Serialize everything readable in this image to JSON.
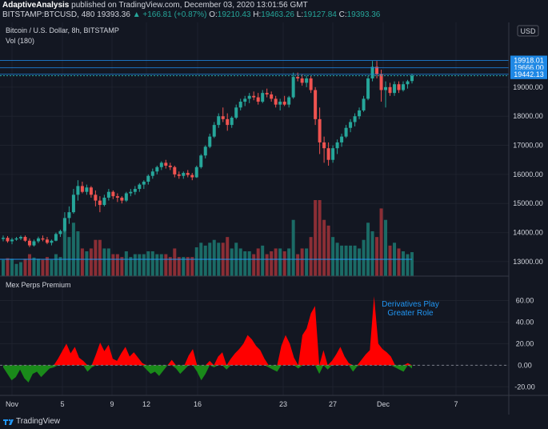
{
  "header": {
    "author": "AdaptiveAnalysis",
    "published_text": "published on TradingView.com, December 03, 2020 13:01:56 GMT",
    "symbol_line": "BITSTAMP:BTCUSD, 480",
    "last_price": "19393.36",
    "change": "▲ +166.81 (+0.87%)",
    "o_label": "O:",
    "o_value": "19210.43",
    "h_label": "H:",
    "h_value": "19463.26",
    "l_label": "L:",
    "l_value": "19127.84",
    "c_label": "C:",
    "c_value": "19393.36"
  },
  "pane_labels": {
    "title": "Bitcoin / U.S. Dollar, 8h, BITSTAMP",
    "volume": "Vol (180)",
    "indicator": "Mex Perps Premium",
    "annotation_line1": "Derivatives Play",
    "annotation_line2": "Greater Role",
    "currency": "USD"
  },
  "price_axis": {
    "ticks": [
      "19000.00",
      "18000.00",
      "17000.00",
      "16000.00",
      "15000.00",
      "14000.00",
      "13000.00"
    ],
    "markers": [
      "19918.01",
      "19666.00",
      "19442.13"
    ]
  },
  "premium_axis": {
    "ticks": [
      "60.00",
      "40.00",
      "20.00",
      "0.00",
      "-20.00"
    ]
  },
  "x_axis": {
    "ticks": [
      "Nov",
      "5",
      "9",
      "12",
      "16",
      "23",
      "27",
      "Dec",
      "7"
    ]
  },
  "footer": {
    "brand": "TradingView"
  },
  "colors": {
    "background": "#131722",
    "up": "#26a69a",
    "down": "#ef5350",
    "up_volume": "#1b6b66",
    "down_volume": "#8b2e35",
    "premium_positive": "#ff0000",
    "premium_negative": "#1a8a1a",
    "annotation": "#2196f3",
    "marker": "#1e88e5"
  },
  "chart_data": [
    {
      "type": "candlestick",
      "title": "Bitcoin / U.S. Dollar, 8h, BITSTAMP",
      "ylim": [
        12750,
        20400
      ],
      "y_ticks": [
        13000,
        14000,
        15000,
        16000,
        17000,
        18000,
        19000
      ],
      "price_markers": [
        19918.01,
        19666.0,
        19442.13
      ],
      "ohlc": [
        [
          13780,
          13900,
          13700,
          13820
        ],
        [
          13820,
          13880,
          13650,
          13700
        ],
        [
          13700,
          13820,
          13600,
          13760
        ],
        [
          13760,
          13850,
          13720,
          13800
        ],
        [
          13800,
          13900,
          13740,
          13850
        ],
        [
          13850,
          13900,
          13680,
          13720
        ],
        [
          13720,
          13800,
          13500,
          13560
        ],
        [
          13560,
          13760,
          13520,
          13700
        ],
        [
          13700,
          13860,
          13640,
          13800
        ],
        [
          13800,
          13900,
          13700,
          13760
        ],
        [
          13760,
          13850,
          13600,
          13650
        ],
        [
          13650,
          13760,
          13560,
          13720
        ],
        [
          13720,
          14000,
          13700,
          13950
        ],
        [
          13950,
          14100,
          13850,
          14050
        ],
        [
          14050,
          14700,
          14000,
          14500
        ],
        [
          14500,
          14900,
          14300,
          14700
        ],
        [
          14700,
          15500,
          14650,
          15300
        ],
        [
          15300,
          15800,
          15100,
          15600
        ],
        [
          15600,
          15750,
          15350,
          15400
        ],
        [
          15400,
          15650,
          15300,
          15550
        ],
        [
          15550,
          15600,
          15200,
          15300
        ],
        [
          15300,
          15450,
          14900,
          15100
        ],
        [
          15100,
          15250,
          14700,
          14950
        ],
        [
          14950,
          15300,
          14900,
          15200
        ],
        [
          15200,
          15500,
          15100,
          15400
        ],
        [
          15400,
          15450,
          15150,
          15250
        ],
        [
          15250,
          15350,
          15050,
          15200
        ],
        [
          15200,
          15250,
          15000,
          15100
        ],
        [
          15100,
          15400,
          15050,
          15350
        ],
        [
          15350,
          15500,
          15250,
          15400
        ],
        [
          15400,
          15600,
          15300,
          15500
        ],
        [
          15500,
          15700,
          15400,
          15650
        ],
        [
          15650,
          15800,
          15500,
          15750
        ],
        [
          15750,
          16000,
          15650,
          15950
        ],
        [
          15950,
          16200,
          15850,
          16100
        ],
        [
          16100,
          16300,
          16000,
          16250
        ],
        [
          16250,
          16450,
          16150,
          16400
        ],
        [
          16400,
          16500,
          16200,
          16300
        ],
        [
          16300,
          16400,
          16150,
          16250
        ],
        [
          16250,
          16300,
          15900,
          16000
        ],
        [
          16000,
          16100,
          15850,
          15950
        ],
        [
          15950,
          16100,
          15850,
          16050
        ],
        [
          16050,
          16150,
          15900,
          15980
        ],
        [
          15980,
          16050,
          15800,
          15900
        ],
        [
          15900,
          16300,
          15880,
          16250
        ],
        [
          16250,
          16700,
          16200,
          16650
        ],
        [
          16650,
          17000,
          16550,
          16950
        ],
        [
          16950,
          17400,
          16900,
          17300
        ],
        [
          17300,
          17800,
          17250,
          17700
        ],
        [
          17700,
          18100,
          17600,
          18000
        ],
        [
          18000,
          18300,
          17800,
          17900
        ],
        [
          17900,
          18100,
          17500,
          17700
        ],
        [
          17700,
          18000,
          17600,
          17950
        ],
        [
          17950,
          18400,
          17900,
          18300
        ],
        [
          18300,
          18600,
          18200,
          18500
        ],
        [
          18500,
          18700,
          18350,
          18600
        ],
        [
          18600,
          18800,
          18450,
          18700
        ],
        [
          18700,
          18850,
          18550,
          18650
        ],
        [
          18650,
          18800,
          18400,
          18500
        ],
        [
          18500,
          18900,
          18450,
          18800
        ],
        [
          18800,
          18950,
          18650,
          18750
        ],
        [
          18750,
          18850,
          18500,
          18600
        ],
        [
          18600,
          18700,
          18300,
          18400
        ],
        [
          18400,
          18600,
          18200,
          18500
        ],
        [
          18500,
          18700,
          18350,
          18400
        ],
        [
          18400,
          18700,
          18300,
          18650
        ],
        [
          18650,
          19500,
          18600,
          19350
        ],
        [
          19350,
          19500,
          19200,
          19300
        ],
        [
          19300,
          19450,
          19050,
          19150
        ],
        [
          19150,
          19400,
          19000,
          19300
        ],
        [
          19300,
          19400,
          18800,
          18900
        ],
        [
          18900,
          19000,
          17700,
          17900
        ],
        [
          17900,
          18300,
          16700,
          17100
        ],
        [
          17100,
          17300,
          16400,
          16900
        ],
        [
          16900,
          17100,
          16300,
          16500
        ],
        [
          16500,
          17000,
          16400,
          16900
        ],
        [
          16900,
          17200,
          16700,
          17100
        ],
        [
          17100,
          17400,
          16950,
          17300
        ],
        [
          17300,
          17700,
          17250,
          17600
        ],
        [
          17600,
          17900,
          17450,
          17800
        ],
        [
          17800,
          18100,
          17650,
          18000
        ],
        [
          18000,
          18300,
          17900,
          18200
        ],
        [
          18200,
          18700,
          18150,
          18600
        ],
        [
          18600,
          19400,
          18550,
          19300
        ],
        [
          19300,
          19900,
          19200,
          19700
        ],
        [
          19700,
          19900,
          19300,
          19450
        ],
        [
          19450,
          19600,
          18500,
          18900
        ],
        [
          18900,
          19200,
          18300,
          19000
        ],
        [
          19000,
          19150,
          18700,
          18800
        ],
        [
          18800,
          19200,
          18700,
          19100
        ],
        [
          19100,
          19200,
          18800,
          18900
        ],
        [
          18900,
          19200,
          18850,
          19100
        ],
        [
          19100,
          19250,
          18950,
          19200
        ],
        [
          19210.43,
          19463.26,
          19127.84,
          19393.36
        ]
      ]
    },
    {
      "type": "bar",
      "title": "Vol (180)"
    },
    {
      "type": "area",
      "title": "Mex Perps Premium",
      "ylim": [
        -25,
        70
      ],
      "y_ticks": [
        -20,
        0,
        20,
        40,
        60
      ],
      "values": [
        -2,
        -8,
        -14,
        -11,
        -4,
        -12,
        -16,
        -8,
        -6,
        -11,
        -7,
        -3,
        -2,
        6,
        13,
        20,
        11,
        17,
        7,
        4,
        -6,
        -2,
        10,
        21,
        13,
        19,
        6,
        4,
        11,
        17,
        8,
        12,
        7,
        2,
        -4,
        -8,
        -6,
        -10,
        -5,
        0,
        5,
        -3,
        -8,
        -4,
        9,
        15,
        -6,
        -14,
        -8,
        4,
        -2,
        8,
        12,
        -4,
        6,
        11,
        15,
        20,
        28,
        24,
        18,
        14,
        6,
        -2,
        -4,
        -6,
        18,
        28,
        20,
        7,
        -3,
        28,
        34,
        48,
        55,
        -8,
        14,
        -4,
        4,
        10,
        17,
        8,
        2,
        -6,
        -1,
        5,
        10,
        14,
        64,
        20,
        15,
        12,
        8,
        -2,
        -4,
        -6,
        2,
        -3
      ]
    }
  ]
}
